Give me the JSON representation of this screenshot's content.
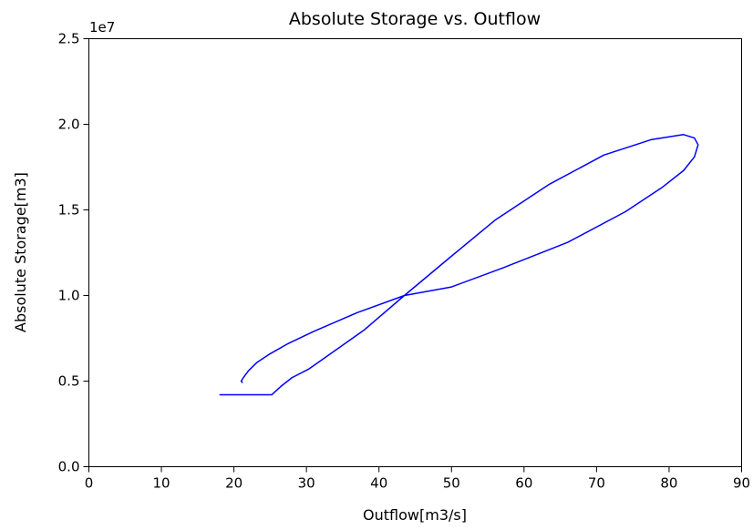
{
  "chart_data": {
    "type": "line",
    "title": "Absolute Storage vs. Outflow",
    "xlabel": "Outflow[m3/s]",
    "ylabel": "Absolute Storage[m3]",
    "y_offset_label": "1e7",
    "xlim": [
      0,
      90
    ],
    "ylim": [
      0,
      2.5
    ],
    "x_ticks": [
      "0",
      "10",
      "20",
      "30",
      "40",
      "50",
      "60",
      "70",
      "80",
      "90"
    ],
    "y_ticks": [
      "0.0",
      "0.5",
      "1.0",
      "1.5",
      "2.0",
      "2.5"
    ],
    "grid": false,
    "legend": "none",
    "series": [
      {
        "color": "#0000ff",
        "x": [
          18.0,
          25.2,
          26.5,
          28.0,
          30.3,
          34.0,
          38.0,
          43.5,
          50.0,
          56.0,
          63.5,
          71.0,
          77.5,
          82.0,
          83.5,
          84.0,
          83.5,
          82.0,
          79.0,
          74.0,
          66.0,
          57.0,
          50.0,
          43.5,
          37.0,
          31.0,
          27.5,
          25.0,
          23.2,
          22.0,
          21.3,
          21.0,
          21.2
        ],
        "y": [
          0.42,
          0.42,
          0.47,
          0.52,
          0.57,
          0.68,
          0.8,
          1.0,
          1.23,
          1.44,
          1.65,
          1.82,
          1.91,
          1.94,
          1.92,
          1.88,
          1.81,
          1.73,
          1.63,
          1.49,
          1.31,
          1.16,
          1.05,
          1.0,
          0.9,
          0.79,
          0.72,
          0.66,
          0.61,
          0.56,
          0.52,
          0.5,
          0.49
        ]
      }
    ]
  }
}
